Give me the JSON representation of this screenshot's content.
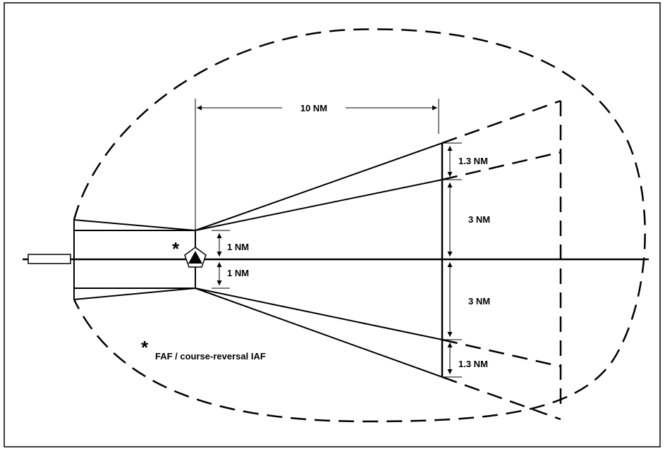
{
  "labels": {
    "dim_10nm": "10 NM",
    "dim_1nm_top": "1 NM",
    "dim_1nm_bottom": "1 NM",
    "dim_3nm_top": "3 NM",
    "dim_3nm_bottom": "3 NM",
    "dim_13nm_top": "1.3 NM",
    "dim_13nm_bottom": "1.3 NM"
  },
  "legend": {
    "marker": "*",
    "text": "FAF / course-reversal  IAF"
  },
  "fix_marker": "*",
  "icons": {
    "fix": "pentagon-triangle-icon",
    "runway": "runway-icon"
  },
  "colors": {
    "ink": "#000000",
    "background": "#ffffff"
  }
}
